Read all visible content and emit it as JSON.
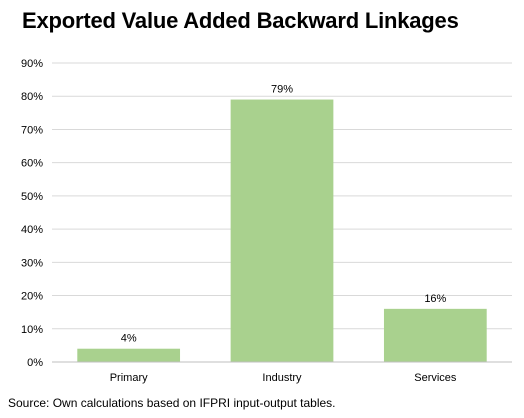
{
  "chart_data": {
    "type": "bar",
    "title": "Exported Value Added Backward Linkages",
    "categories": [
      "Primary",
      "Industry",
      "Services"
    ],
    "values": [
      4,
      79,
      16
    ],
    "data_labels": [
      "4%",
      "79%",
      "16%"
    ],
    "y_ticks": [
      "0%",
      "10%",
      "20%",
      "30%",
      "40%",
      "50%",
      "60%",
      "70%",
      "80%",
      "90%"
    ],
    "ylim": [
      0,
      90
    ],
    "y_unit": "%",
    "grid": true,
    "bar_color": "#a9d18e",
    "source": "Source: Own calculations based on IFPRI input-output tables."
  }
}
